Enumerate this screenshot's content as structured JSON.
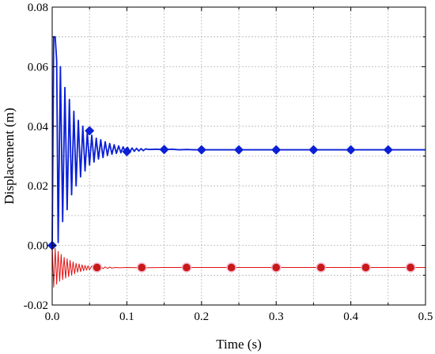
{
  "chart_data": {
    "type": "line",
    "xlabel": "Time (s)",
    "ylabel": "Displacement (m)",
    "xlim": [
      0.0,
      0.5
    ],
    "ylim": [
      -0.02,
      0.08
    ],
    "xticks": [
      0.0,
      0.1,
      0.2,
      0.3,
      0.4,
      0.5
    ],
    "xtick_labels": [
      "0.0",
      "0.1",
      "0.2",
      "0.3",
      "0.4",
      "0.5"
    ],
    "yticks": [
      -0.02,
      0.0,
      0.02,
      0.04,
      0.06,
      0.08
    ],
    "ytick_labels": [
      "-0.02",
      "0.00",
      "0.02",
      "0.04",
      "0.06",
      "0.08"
    ],
    "grid": true,
    "series": [
      {
        "color": "#0a1fd6",
        "marker": "diamond",
        "curve": {
          "x": [
            0.0,
            0.002,
            0.004,
            0.006,
            0.008,
            0.011,
            0.014,
            0.017,
            0.02,
            0.023,
            0.026,
            0.029,
            0.032,
            0.035,
            0.038,
            0.041,
            0.044,
            0.047,
            0.05,
            0.053,
            0.056,
            0.059,
            0.062,
            0.065,
            0.068,
            0.071,
            0.074,
            0.077,
            0.08,
            0.083,
            0.086,
            0.089,
            0.092,
            0.095,
            0.098,
            0.101,
            0.104,
            0.107,
            0.11,
            0.113,
            0.116,
            0.119,
            0.122,
            0.125,
            0.13,
            0.14,
            0.15,
            0.16,
            0.17,
            0.18,
            0.19,
            0.2,
            0.25,
            0.3,
            0.35,
            0.4,
            0.45,
            0.5
          ],
          "y": [
            0.0,
            0.07,
            0.07,
            0.062,
            0.001,
            0.06,
            0.008,
            0.053,
            0.012,
            0.049,
            0.017,
            0.045,
            0.02,
            0.042,
            0.023,
            0.04,
            0.025,
            0.038,
            0.027,
            0.037,
            0.028,
            0.036,
            0.029,
            0.0355,
            0.0295,
            0.0348,
            0.0302,
            0.0342,
            0.0306,
            0.0338,
            0.0309,
            0.0334,
            0.0311,
            0.0331,
            0.0313,
            0.0329,
            0.0315,
            0.0327,
            0.0316,
            0.0326,
            0.0317,
            0.0325,
            0.0318,
            0.0324,
            0.0322,
            0.0323,
            0.0321,
            0.0323,
            0.0321,
            0.0322,
            0.0321,
            0.0321,
            0.0321,
            0.0321,
            0.0321,
            0.0321,
            0.0321,
            0.0321
          ]
        },
        "markers": {
          "x": [
            0.0,
            0.05,
            0.1,
            0.15,
            0.2,
            0.25,
            0.3,
            0.35,
            0.4,
            0.45
          ],
          "y": [
            0.0,
            0.0385,
            0.0315,
            0.0322,
            0.0321,
            0.0321,
            0.0321,
            0.0321,
            0.0321,
            0.0321
          ]
        }
      },
      {
        "color": "#e31010",
        "marker_color": "#c81818",
        "marker": "circle",
        "curve": {
          "x": [
            0.0,
            0.002,
            0.004,
            0.006,
            0.008,
            0.01,
            0.012,
            0.014,
            0.016,
            0.018,
            0.02,
            0.022,
            0.024,
            0.026,
            0.028,
            0.03,
            0.032,
            0.034,
            0.036,
            0.038,
            0.04,
            0.042,
            0.044,
            0.046,
            0.048,
            0.05,
            0.053,
            0.056,
            0.059,
            0.062,
            0.065,
            0.068,
            0.071,
            0.074,
            0.077,
            0.08,
            0.085,
            0.09,
            0.1,
            0.12,
            0.15,
            0.2,
            0.3,
            0.4,
            0.5
          ],
          "y": [
            0.0,
            -0.014,
            -0.001,
            -0.013,
            -0.002,
            -0.012,
            -0.003,
            -0.0115,
            -0.004,
            -0.011,
            -0.0045,
            -0.0105,
            -0.005,
            -0.01,
            -0.0055,
            -0.0095,
            -0.006,
            -0.009,
            -0.0062,
            -0.0088,
            -0.0065,
            -0.0085,
            -0.0067,
            -0.0083,
            -0.0068,
            -0.0082,
            -0.0069,
            -0.008,
            -0.007,
            -0.0079,
            -0.0071,
            -0.0078,
            -0.0072,
            -0.0077,
            -0.0073,
            -0.0076,
            -0.0074,
            -0.0075,
            -0.0074,
            -0.0075,
            -0.0074,
            -0.0074,
            -0.0074,
            -0.0074,
            -0.0074
          ]
        },
        "markers": {
          "x": [
            0.06,
            0.12,
            0.18,
            0.24,
            0.3,
            0.36,
            0.42,
            0.48
          ],
          "y": [
            -0.0074,
            -0.0074,
            -0.0074,
            -0.0074,
            -0.0074,
            -0.0074,
            -0.0074,
            -0.0074
          ]
        }
      }
    ]
  }
}
